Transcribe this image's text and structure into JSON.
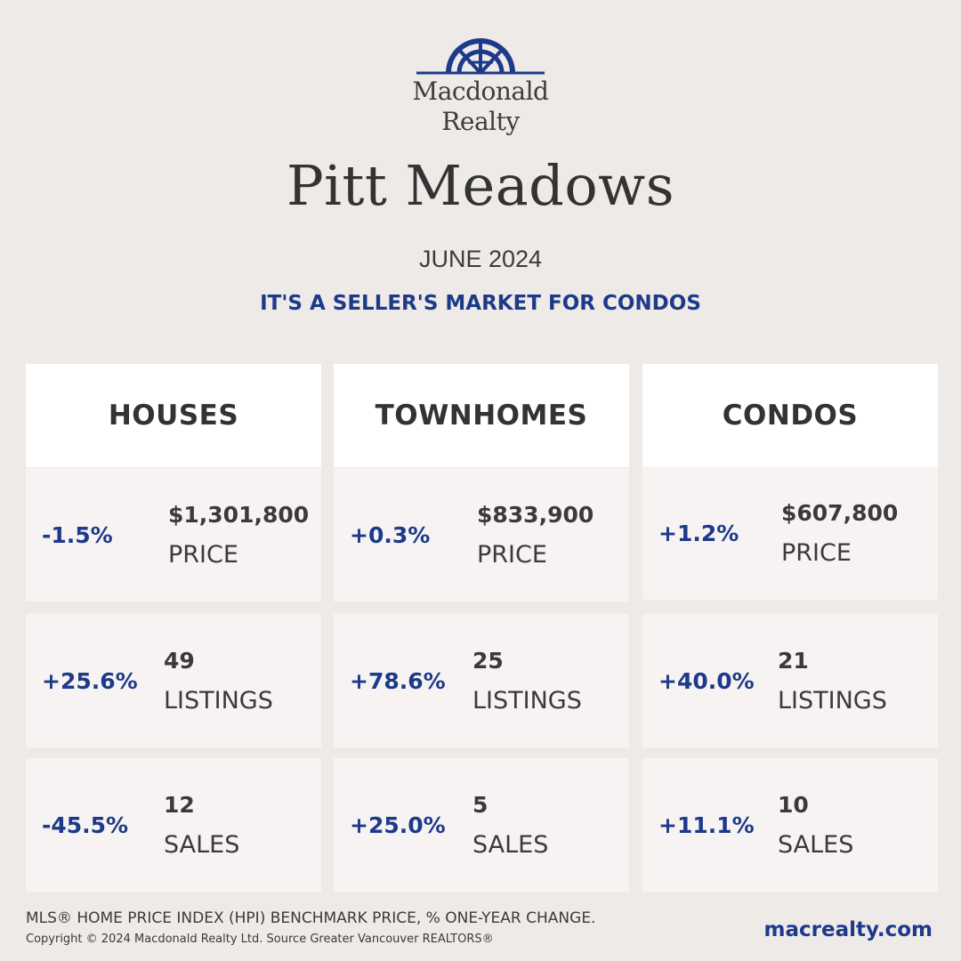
{
  "brand": {
    "logo_line1": "Macdonald",
    "logo_line2": "Realty",
    "logo_color": "#1d3a8a"
  },
  "header": {
    "city": "Pitt Meadows",
    "month": "JUNE 2024",
    "tagline": "IT'S A SELLER'S MARKET FOR CONDOS"
  },
  "columns": [
    {
      "title": "HOUSES",
      "price": {
        "change": "-1.5%",
        "value": "$1,301,800",
        "label": "PRICE"
      },
      "listings": {
        "change": "+25.6%",
        "value": "49",
        "label": "LISTINGS"
      },
      "sales": {
        "change": "-45.5%",
        "value": "12",
        "label": "SALES"
      }
    },
    {
      "title": "TOWNHOMES",
      "price": {
        "change": "+0.3%",
        "value": "$833,900",
        "label": "PRICE"
      },
      "listings": {
        "change": "+78.6%",
        "value": "25",
        "label": "LISTINGS"
      },
      "sales": {
        "change": "+25.0%",
        "value": "5",
        "label": "SALES"
      }
    },
    {
      "title": "CONDOS",
      "price": {
        "change": "+1.2%",
        "value": "$607,800",
        "label": "PRICE"
      },
      "listings": {
        "change": "+40.0%",
        "value": "21",
        "label": "LISTINGS"
      },
      "sales": {
        "change": "+11.1%",
        "value": "10",
        "label": "SALES"
      }
    }
  ],
  "footer": {
    "note": "MLS® HOME PRICE INDEX (HPI) BENCHMARK PRICE, % ONE-YEAR CHANGE.",
    "copyright": "Copyright © 2024 Macdonald Realty Ltd. Source Greater Vancouver REALTORS®",
    "website": "macrealty.com"
  },
  "colors": {
    "background": "#eeeae8",
    "accent": "#1d3a8a",
    "header_card": "#ffffff",
    "stat_card": "#f7f3f2"
  }
}
